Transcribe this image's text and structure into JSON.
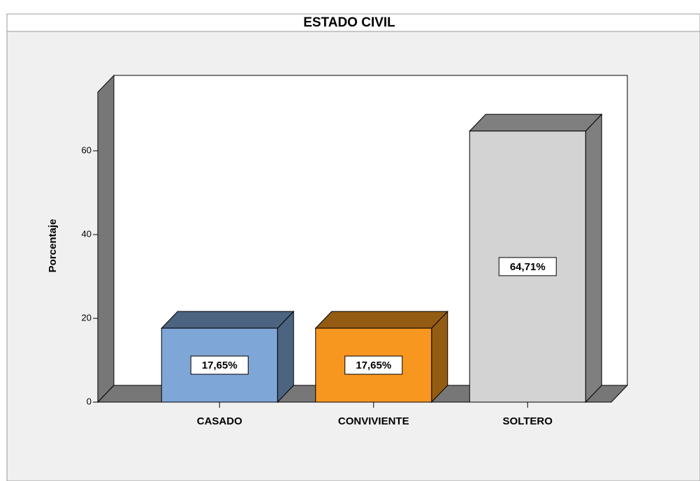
{
  "chart_data": {
    "type": "bar3d",
    "title": "ESTADO CIVIL",
    "y_label": "Porcentaje",
    "categories": [
      "CASADO",
      "CONVIVIENTE",
      "SOLTERO"
    ],
    "values": [
      17.65,
      17.65,
      64.71
    ],
    "value_labels": [
      "17,65%",
      "17,65%",
      "64,71%"
    ],
    "colors": [
      "#7ea6d6",
      "#f7971f",
      "#d3d3d3"
    ],
    "ylim": [
      0,
      74
    ],
    "yticks": [
      0,
      20,
      40,
      60
    ],
    "grid": false
  }
}
